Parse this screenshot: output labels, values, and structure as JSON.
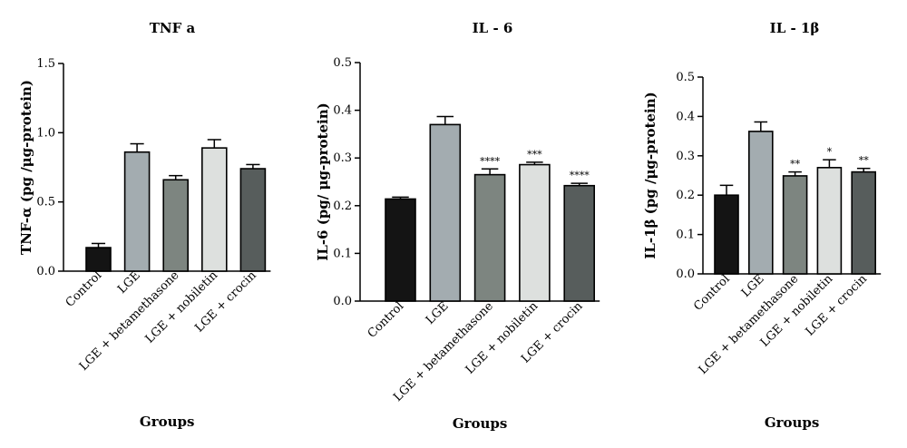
{
  "chart_data": [
    {
      "type": "bar",
      "title": "TNF a",
      "ylabel": "TNF-α (pg /μg-protein)",
      "xlabel": "Groups",
      "ylim": [
        0,
        1.5
      ],
      "yticks": [
        "0.0",
        "0.5",
        "1.0",
        "1.5"
      ],
      "tick_values": [
        0,
        0.5,
        1.0,
        1.5
      ],
      "categories": [
        "Control",
        "LGE",
        "LGE + betamethasone",
        "LGE + nobiletin",
        "LGE + crocin"
      ],
      "values": [
        0.17,
        0.86,
        0.66,
        0.89,
        0.74
      ],
      "errors": [
        0.03,
        0.06,
        0.03,
        0.06,
        0.03
      ],
      "significance": [
        "",
        "",
        "",
        "",
        ""
      ],
      "colors": [
        "#141414",
        "#a3acb0",
        "#7d8580",
        "#dde0de",
        "#575d5c"
      ]
    },
    {
      "type": "bar",
      "title": "IL - 6",
      "ylabel": "IL-6 (pg/ μg-protein)",
      "xlabel": "Groups",
      "ylim": [
        0,
        0.5
      ],
      "yticks": [
        "0.0",
        "0.1",
        "0.2",
        "0.3",
        "0.4",
        "0.5"
      ],
      "tick_values": [
        0,
        0.1,
        0.2,
        0.3,
        0.4,
        0.5
      ],
      "categories": [
        "Control",
        "LGE",
        "LGE + betamethasone",
        "LGE + nobiletin",
        "LGE + crocin"
      ],
      "values": [
        0.214,
        0.37,
        0.265,
        0.286,
        0.242
      ],
      "errors": [
        0.004,
        0.017,
        0.012,
        0.005,
        0.005
      ],
      "significance": [
        "",
        "",
        "****",
        "***",
        "****"
      ],
      "colors": [
        "#141414",
        "#a3acb0",
        "#7d8580",
        "#dde0de",
        "#575d5c"
      ]
    },
    {
      "type": "bar",
      "title": "IL - 1β",
      "ylabel": "IL-1β (pg /μg-protein)",
      "xlabel": "Groups",
      "ylim": [
        0,
        0.5
      ],
      "yticks": [
        "0.0",
        "0.1",
        "0.2",
        "0.3",
        "0.4",
        "0.5"
      ],
      "tick_values": [
        0,
        0.1,
        0.2,
        0.3,
        0.4,
        0.5
      ],
      "categories": [
        "Control",
        "LGE",
        "LGE + betamethasone",
        "LGE + nobiletin",
        "LGE + crocin"
      ],
      "values": [
        0.2,
        0.362,
        0.249,
        0.27,
        0.259
      ],
      "errors": [
        0.025,
        0.024,
        0.01,
        0.02,
        0.009
      ],
      "significance": [
        "",
        "",
        "**",
        "*",
        "**"
      ],
      "colors": [
        "#141414",
        "#a3acb0",
        "#7d8580",
        "#dde0de",
        "#575d5c"
      ]
    }
  ]
}
